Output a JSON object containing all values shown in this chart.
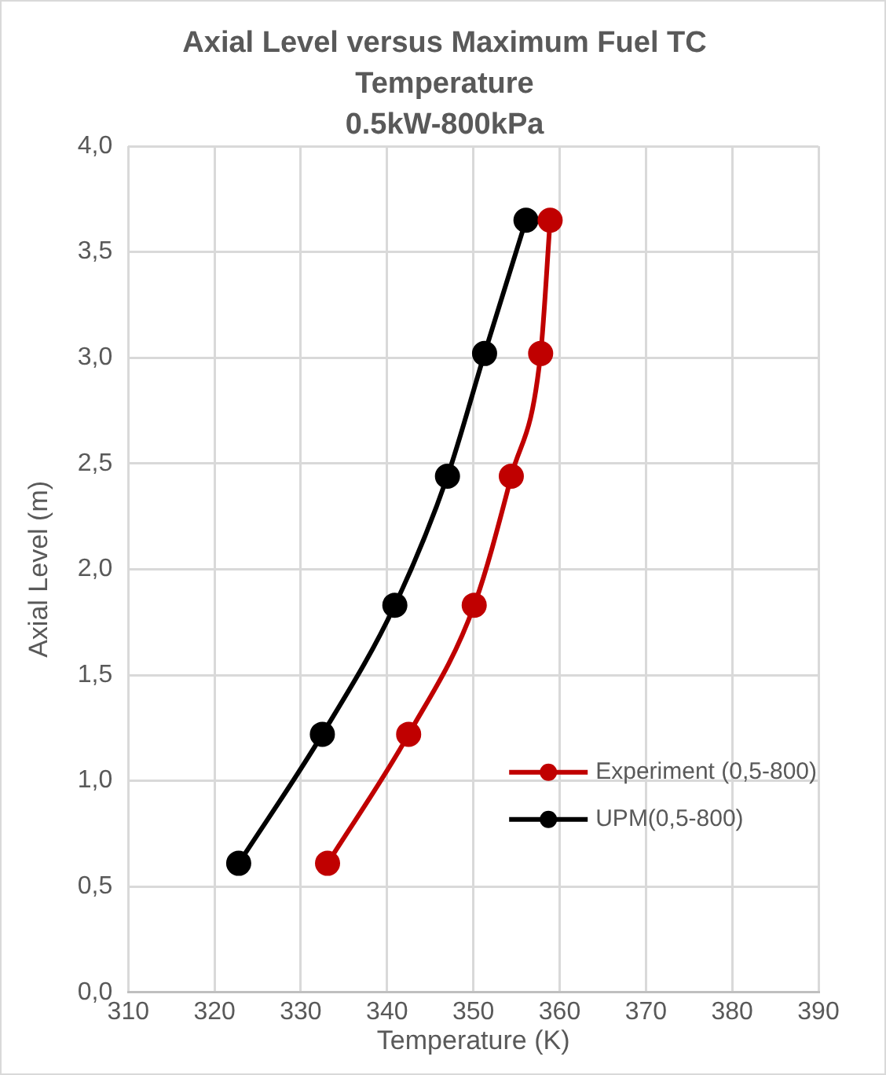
{
  "chart_data": {
    "type": "line",
    "title": "Axial Level versus Maximum Fuel TC Temperature",
    "subtitle": "0.5kW-800kPa",
    "xlabel": "Temperature (K)",
    "ylabel": "Axial Level (m)",
    "series": [
      {
        "name": "Experiment (0,5-800)",
        "color": "#c00000",
        "x": [
          333.1,
          342.5,
          350.1,
          354.4,
          357.8,
          358.9
        ],
        "values": [
          0.61,
          1.22,
          1.83,
          2.44,
          3.02,
          3.65
        ]
      },
      {
        "name": "UPM(0,5-800)",
        "color": "#000000",
        "x": [
          322.8,
          332.5,
          340.9,
          347.0,
          351.3,
          356.1
        ],
        "values": [
          0.61,
          1.22,
          1.83,
          2.44,
          3.02,
          3.65
        ]
      }
    ],
    "xlim": [
      310,
      390
    ],
    "xticks": [
      310,
      320,
      330,
      340,
      350,
      360,
      370,
      380,
      390
    ],
    "ylim": [
      0,
      4
    ],
    "yticks": [
      {
        "value": 0,
        "label": "0,0"
      },
      {
        "value": 0.5,
        "label": "0,5"
      },
      {
        "value": 1,
        "label": "1,0"
      },
      {
        "value": 1.5,
        "label": "1,5"
      },
      {
        "value": 2,
        "label": "2,0"
      },
      {
        "value": 2.5,
        "label": "2,5"
      },
      {
        "value": 3,
        "label": "3,0"
      },
      {
        "value": 3.5,
        "label": "3,5"
      },
      {
        "value": 4,
        "label": "4,0"
      }
    ],
    "grid": true,
    "legend": "bottom right",
    "marker": "circle",
    "line_style": "solid"
  }
}
